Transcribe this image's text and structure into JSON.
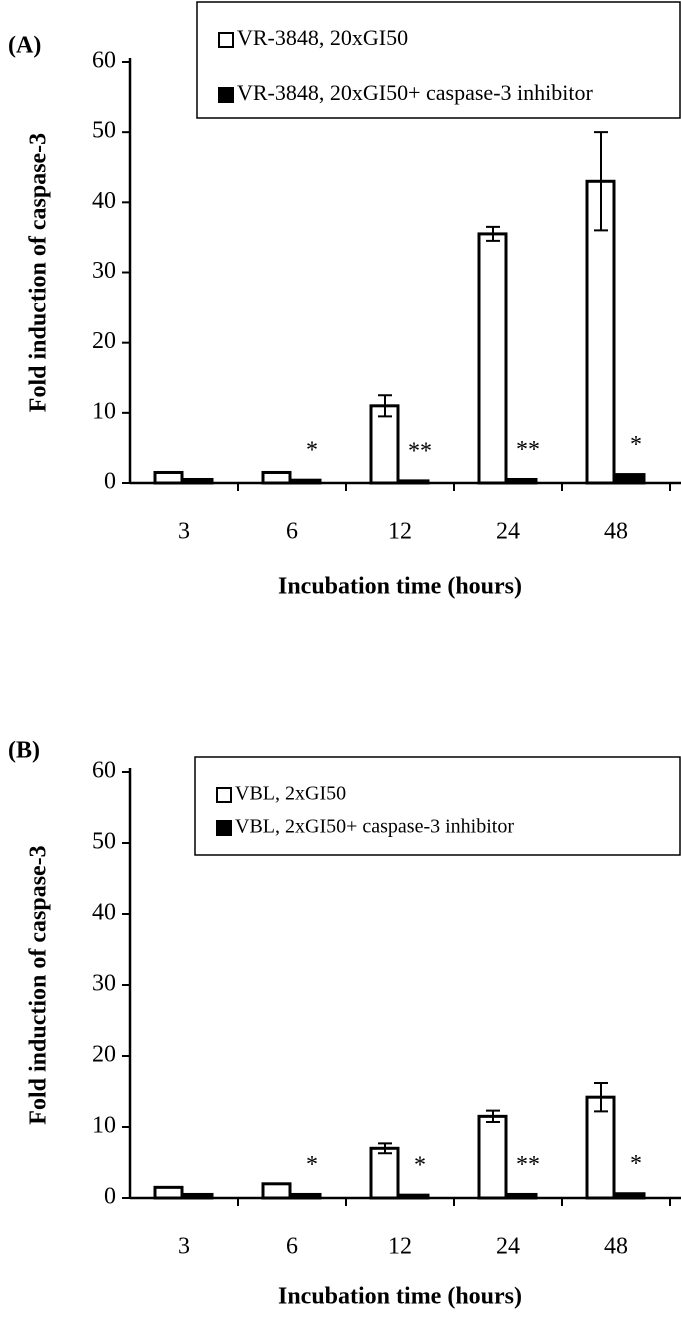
{
  "chart_data": [
    {
      "type": "bar",
      "panel": "(A)",
      "y_label": "Fold induction of caspase-3",
      "x_label": "Incubation time (hours)",
      "categories": [
        "3",
        "6",
        "12",
        "24",
        "48"
      ],
      "series": [
        {
          "name": "VR-3848, 20xGI50",
          "color": "#ffffff",
          "values": [
            1.5,
            1.5,
            11,
            35.5,
            43
          ],
          "errors": [
            null,
            null,
            1.5,
            1,
            7
          ]
        },
        {
          "name": "VR-3848, 20xGI50+ caspase-3 inhibitor",
          "color": "#000000",
          "values": [
            0.5,
            0.4,
            0.3,
            0.5,
            1.2
          ],
          "errors": [
            null,
            null,
            null,
            null,
            null
          ]
        }
      ],
      "annotations": [
        null,
        "*",
        "**",
        "**",
        "*"
      ],
      "ylim": [
        0,
        60
      ],
      "yticks": [
        0,
        10,
        20,
        30,
        40,
        50,
        60
      ]
    },
    {
      "type": "bar",
      "panel": "(B)",
      "y_label": "Fold induction of caspase-3",
      "x_label": "Incubation time (hours)",
      "categories": [
        "3",
        "6",
        "12",
        "24",
        "48"
      ],
      "series": [
        {
          "name": "VBL, 2xGI50",
          "color": "#ffffff",
          "values": [
            1.5,
            2,
            7,
            11.5,
            14.2
          ],
          "errors": [
            null,
            null,
            0.7,
            0.8,
            2
          ]
        },
        {
          "name": "VBL, 2xGI50+ caspase-3 inhibitor",
          "color": "#000000",
          "values": [
            0.5,
            0.5,
            0.4,
            0.5,
            0.6
          ],
          "errors": [
            null,
            null,
            null,
            null,
            null
          ]
        }
      ],
      "annotations": [
        null,
        "*",
        "*",
        "**",
        "*"
      ],
      "ylim": [
        0,
        60
      ],
      "yticks": [
        0,
        10,
        20,
        30,
        40,
        50,
        60
      ]
    }
  ]
}
